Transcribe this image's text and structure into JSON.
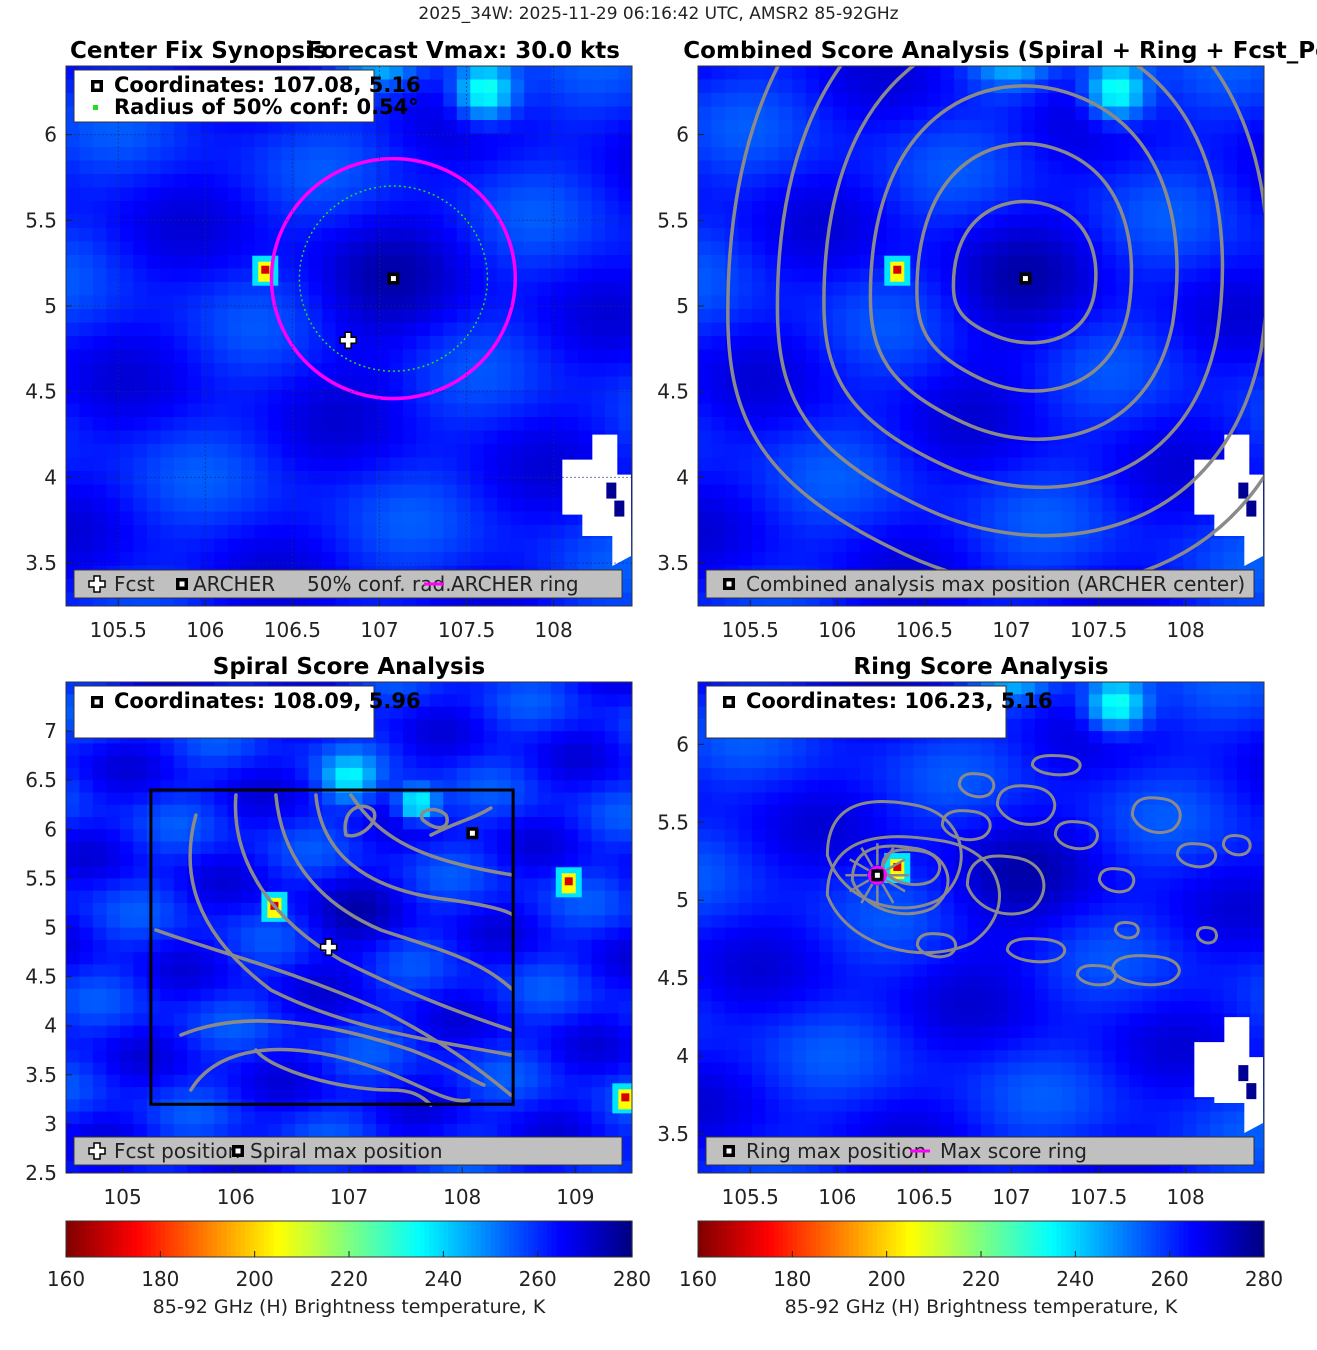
{
  "figure": {
    "suptitle": "2025_34W: 2025-11-29 06:16:42 UTC, AMSR2 85-92GHz"
  },
  "colors": {
    "background_cold": "#1a3ad8",
    "contour": "#8a8a8a",
    "archer_ring": "#ff00ff",
    "conf_ring": "#22dd22",
    "legend_bg": "#c0c0c0",
    "box": "#000000"
  },
  "colorbar": {
    "label": "85-92 GHz (H) Brightness temperature, K",
    "ticks": [
      "160",
      "180",
      "200",
      "220",
      "240",
      "260",
      "280"
    ],
    "range": [
      160,
      280
    ],
    "colormap": "jet-reversed"
  },
  "chart_data": [
    {
      "type": "heatmap",
      "panel": "center-fix-synopsis",
      "title_left": "Center Fix Synopsis",
      "title_right": "Forecast Vmax: 30.0 kts",
      "xlim": [
        105.2,
        108.45
      ],
      "ylim": [
        3.25,
        6.4
      ],
      "xticks": [
        "105.5",
        "106",
        "106.5",
        "107",
        "107.5",
        "108"
      ],
      "yticks": [
        "3.5",
        "4",
        "4.5",
        "5",
        "5.5",
        "6"
      ],
      "grid": true,
      "info_lines": [
        "Coordinates: 107.08, 5.16",
        "Radius of 50% conf: 0.54°"
      ],
      "archer_center": [
        107.08,
        5.16
      ],
      "forecast_position": [
        106.82,
        4.8
      ],
      "conf_radius_deg": 0.54,
      "archer_ring_radius_deg": 0.7,
      "legend": [
        "Fcst",
        "ARCHER",
        "50% conf. rad.",
        "ARCHER ring"
      ],
      "legend_position": "bottom"
    },
    {
      "type": "heatmap",
      "panel": "combined-score",
      "title": "Combined Score Analysis (Spiral + Ring + Fcst_Pe",
      "xlim": [
        105.2,
        108.45
      ],
      "ylim": [
        3.25,
        6.4
      ],
      "xticks": [
        "105.5",
        "106",
        "106.5",
        "107",
        "107.5",
        "108"
      ],
      "yticks": [
        "3.5",
        "4",
        "4.5",
        "5",
        "5.5",
        "6"
      ],
      "max_position": [
        107.08,
        5.16
      ],
      "legend": [
        "Combined analysis max position (ARCHER center)"
      ],
      "legend_position": "bottom"
    },
    {
      "type": "heatmap",
      "panel": "spiral-score",
      "title": "Spiral Score Analysis",
      "xlim": [
        104.5,
        109.5
      ],
      "ylim": [
        2.5,
        7.5
      ],
      "xticks": [
        "105",
        "106",
        "107",
        "108",
        "109"
      ],
      "yticks": [
        "2.5",
        "3",
        "3.5",
        "4",
        "4.5",
        "5",
        "5.5",
        "6",
        "6.5",
        "7"
      ],
      "info_lines": [
        "Coordinates: 108.09, 5.96"
      ],
      "spiral_max_position": [
        108.09,
        5.96
      ],
      "forecast_position": [
        106.82,
        4.8
      ],
      "search_box": {
        "x": [
          105.25,
          108.45
        ],
        "y": [
          3.2,
          6.4
        ]
      },
      "legend": [
        "Fcst position",
        "Spiral max position"
      ],
      "legend_position": "bottom"
    },
    {
      "type": "heatmap",
      "panel": "ring-score",
      "title": "Ring Score Analysis",
      "xlim": [
        105.2,
        108.45
      ],
      "ylim": [
        3.25,
        6.4
      ],
      "xticks": [
        "105.5",
        "106",
        "106.5",
        "107",
        "107.5",
        "108"
      ],
      "yticks": [
        "3.5",
        "4",
        "4.5",
        "5",
        "5.5",
        "6"
      ],
      "info_lines": [
        "Coordinates: 106.23, 5.16"
      ],
      "ring_max_position": [
        106.23,
        5.16
      ],
      "legend": [
        "Ring max position",
        "Max score ring"
      ],
      "legend_position": "bottom"
    }
  ]
}
